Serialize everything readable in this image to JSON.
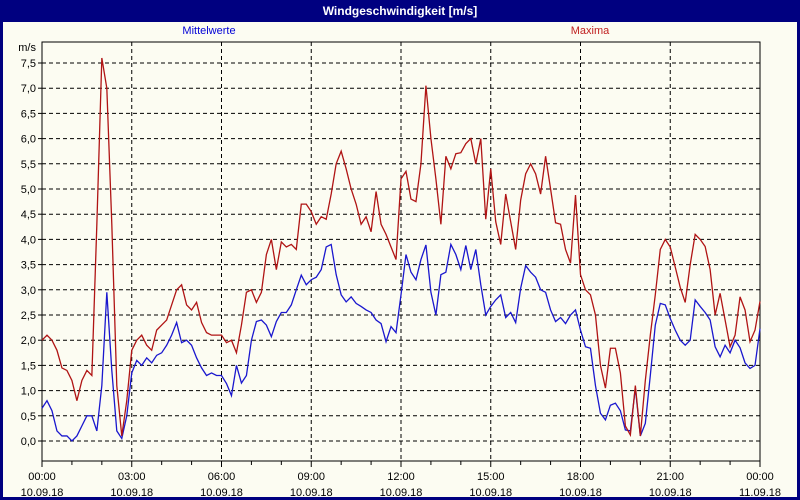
{
  "window": {
    "title": "Windgeschwindigkeit [m/s]"
  },
  "legend": {
    "mean_label": "Mittelwerte",
    "max_label": "Maxima",
    "mean_color": "#1a17ce",
    "max_color": "#b01414"
  },
  "chart_data": {
    "type": "line",
    "title": "Windgeschwindigkeit [m/s]",
    "unit_label": "m/s",
    "grid": "dashed",
    "legend_position": "top",
    "ylim": [
      0,
      7.5
    ],
    "y_tick_step": 0.5,
    "y_tick_labels": [
      "0,0",
      "0,5",
      "1,0",
      "1,5",
      "2,0",
      "2,5",
      "3,0",
      "3,5",
      "4,0",
      "4,5",
      "5,0",
      "5,5",
      "6,0",
      "6,5",
      "7,0",
      "7,5"
    ],
    "x_hours_total": 24,
    "x_major_tick_hours": 3,
    "x_minor_tick_hours": 1,
    "x_ticks": [
      {
        "time": "00:00",
        "date": "10.09.18"
      },
      {
        "time": "03:00",
        "date": "10.09.18"
      },
      {
        "time": "06:00",
        "date": "10.09.18"
      },
      {
        "time": "09:00",
        "date": "10.09.18"
      },
      {
        "time": "12:00",
        "date": "10.09.18"
      },
      {
        "time": "15:00",
        "date": "10.09.18"
      },
      {
        "time": "18:00",
        "date": "10.09.18"
      },
      {
        "time": "21:00",
        "date": "10.09.18"
      },
      {
        "time": "00:00",
        "date": "11.09.18"
      }
    ],
    "sample_interval_minutes": 10,
    "series": [
      {
        "name": "Mittelwerte",
        "color": "#1a17ce",
        "values": [
          0.65,
          0.8,
          0.6,
          0.2,
          0.1,
          0.1,
          0.0,
          0.1,
          0.3,
          0.5,
          0.5,
          0.2,
          1.1,
          2.95,
          1.4,
          0.2,
          0.05,
          0.5,
          1.35,
          1.6,
          1.5,
          1.65,
          1.55,
          1.7,
          1.75,
          1.9,
          2.1,
          2.35,
          1.95,
          2.0,
          1.9,
          1.65,
          1.45,
          1.3,
          1.35,
          1.3,
          1.3,
          1.14,
          0.9,
          1.5,
          1.15,
          1.3,
          2.0,
          2.37,
          2.4,
          2.3,
          2.07,
          2.37,
          2.55,
          2.55,
          2.7,
          3.0,
          3.29,
          3.1,
          3.2,
          3.25,
          3.4,
          3.85,
          3.9,
          3.3,
          2.9,
          2.76,
          2.86,
          2.73,
          2.67,
          2.6,
          2.55,
          2.4,
          2.33,
          1.97,
          2.27,
          2.15,
          2.9,
          3.7,
          3.35,
          3.2,
          3.6,
          3.89,
          2.95,
          2.5,
          3.3,
          3.35,
          3.9,
          3.7,
          3.4,
          3.88,
          3.4,
          3.8,
          3.1,
          2.5,
          2.67,
          2.8,
          2.9,
          2.45,
          2.55,
          2.35,
          3.03,
          3.48,
          3.35,
          3.25,
          3.0,
          2.95,
          2.6,
          2.37,
          2.45,
          2.33,
          2.5,
          2.6,
          2.2,
          1.87,
          1.84,
          1.1,
          0.55,
          0.42,
          0.71,
          0.75,
          0.6,
          0.22,
          0.2,
          1.05,
          0.1,
          0.35,
          1.3,
          2.3,
          2.73,
          2.7,
          2.43,
          2.2,
          2.0,
          1.9,
          2.0,
          2.8,
          2.67,
          2.55,
          2.4,
          1.87,
          1.67,
          1.9,
          1.75,
          2.0,
          1.85,
          1.55,
          1.44,
          1.5,
          2.23
        ]
      },
      {
        "name": "Maxima",
        "color": "#b01414",
        "values": [
          2.0,
          2.1,
          2.0,
          1.8,
          1.45,
          1.4,
          1.2,
          0.8,
          1.2,
          1.4,
          1.3,
          4.3,
          7.6,
          7.0,
          4.3,
          1.1,
          0.1,
          0.8,
          1.8,
          2.0,
          2.1,
          1.9,
          1.8,
          2.2,
          2.3,
          2.4,
          2.7,
          3.0,
          3.1,
          2.7,
          2.6,
          2.75,
          2.35,
          2.15,
          2.1,
          2.1,
          2.1,
          1.95,
          2.0,
          1.75,
          2.3,
          2.95,
          3.0,
          2.75,
          2.95,
          3.7,
          4.0,
          3.4,
          3.95,
          3.85,
          3.9,
          3.8,
          4.7,
          4.7,
          4.55,
          4.3,
          4.45,
          4.4,
          4.9,
          5.5,
          5.75,
          5.4,
          5.0,
          4.7,
          4.3,
          4.45,
          4.15,
          4.95,
          4.3,
          4.1,
          3.85,
          3.6,
          5.2,
          5.35,
          4.8,
          4.75,
          5.5,
          7.05,
          6.0,
          5.2,
          4.3,
          5.65,
          5.4,
          5.7,
          5.72,
          5.9,
          6.0,
          5.5,
          6.0,
          4.4,
          5.4,
          4.35,
          3.9,
          4.9,
          4.35,
          3.8,
          4.78,
          5.3,
          5.5,
          5.3,
          4.9,
          5.65,
          5.0,
          4.33,
          4.3,
          3.8,
          3.53,
          4.88,
          3.3,
          3.0,
          2.9,
          2.5,
          1.5,
          1.05,
          1.84,
          1.84,
          1.35,
          0.3,
          0.12,
          1.1,
          0.1,
          1.2,
          2.1,
          2.9,
          3.8,
          4.0,
          3.85,
          3.45,
          3.05,
          2.75,
          3.5,
          4.1,
          4.0,
          3.86,
          3.4,
          2.5,
          2.93,
          2.4,
          1.87,
          2.1,
          2.86,
          2.6,
          1.97,
          2.2,
          2.77
        ]
      }
    ]
  }
}
